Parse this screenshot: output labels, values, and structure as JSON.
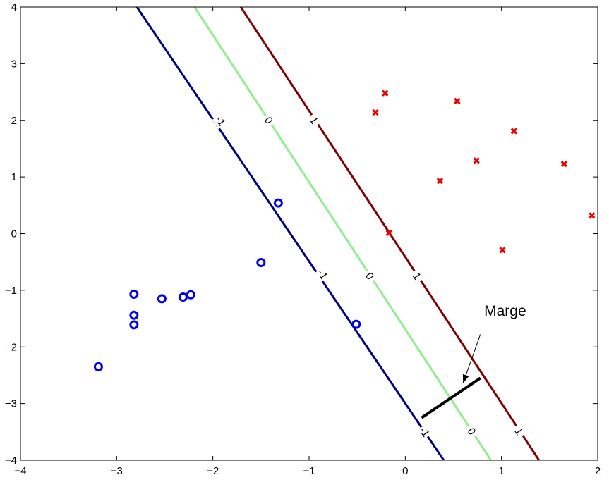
{
  "chart_data": {
    "type": "scatter",
    "title": "",
    "xlabel": "",
    "ylabel": "",
    "xlim": [
      -4,
      2
    ],
    "ylim": [
      -4,
      4
    ],
    "x_ticks": [
      -4,
      -3,
      -2,
      -1,
      0,
      1,
      2
    ],
    "y_ticks": [
      -4,
      -3,
      -2,
      -1,
      0,
      1,
      2,
      3,
      4
    ],
    "x_tick_labels": [
      "−4",
      "−3",
      "−2",
      "−1",
      "0",
      "1",
      "2"
    ],
    "y_tick_labels": [
      "−4",
      "−3",
      "−2",
      "−1",
      "0",
      "1",
      "2",
      "3",
      "4"
    ],
    "grid": false,
    "series": [
      {
        "marker": "circle",
        "color": "#0000ee",
        "points": [
          [
            -3.19,
            -2.35
          ],
          [
            -2.82,
            -1.07
          ],
          [
            -2.82,
            -1.44
          ],
          [
            -2.82,
            -1.61
          ],
          [
            -2.53,
            -1.15
          ],
          [
            -2.31,
            -1.12
          ],
          [
            -2.23,
            -1.08
          ],
          [
            -1.5,
            -0.51
          ],
          [
            -1.32,
            0.54
          ],
          [
            -0.51,
            -1.6
          ]
        ]
      },
      {
        "marker": "x",
        "color": "#ee0000",
        "points": [
          [
            -0.31,
            2.14
          ],
          [
            -0.21,
            2.48
          ],
          [
            -0.17,
            0.01
          ],
          [
            0.36,
            0.93
          ],
          [
            0.54,
            2.34
          ],
          [
            0.74,
            1.29
          ],
          [
            1.01,
            -0.29
          ],
          [
            1.13,
            1.81
          ],
          [
            1.65,
            1.23
          ],
          [
            1.94,
            0.32
          ]
        ]
      }
    ],
    "contours": [
      {
        "level_label": "-1",
        "color": "#000080",
        "line": [
          [
            -2.79,
            4.0
          ],
          [
            0.4,
            -4.0
          ]
        ],
        "label_positions": [
          [
            -1.92,
            1.99
          ],
          [
            -0.86,
            -0.72
          ],
          [
            0.2,
            -3.5
          ]
        ]
      },
      {
        "level_label": "0",
        "color": "#90ee90",
        "line": [
          [
            -2.19,
            4.0
          ],
          [
            0.89,
            -4.0
          ]
        ],
        "label_positions": [
          [
            -1.42,
            2.0
          ],
          [
            -0.37,
            -0.75
          ],
          [
            0.69,
            -3.49
          ]
        ]
      },
      {
        "level_label": "1",
        "color": "#800000",
        "line": [
          [
            -1.71,
            4.0
          ],
          [
            1.39,
            -4.0
          ]
        ],
        "label_positions": [
          [
            -0.95,
            2.0
          ],
          [
            0.12,
            -0.75
          ],
          [
            1.18,
            -3.49
          ]
        ]
      }
    ],
    "margin_segment": [
      [
        0.17,
        -3.25
      ],
      [
        0.78,
        -2.55
      ]
    ],
    "annotations": [
      {
        "text": "Marge",
        "text_position": [
          0.82,
          -1.45
        ],
        "arrow_from": [
          0.78,
          -1.78
        ],
        "arrow_to": [
          0.6,
          -2.64
        ]
      }
    ]
  }
}
